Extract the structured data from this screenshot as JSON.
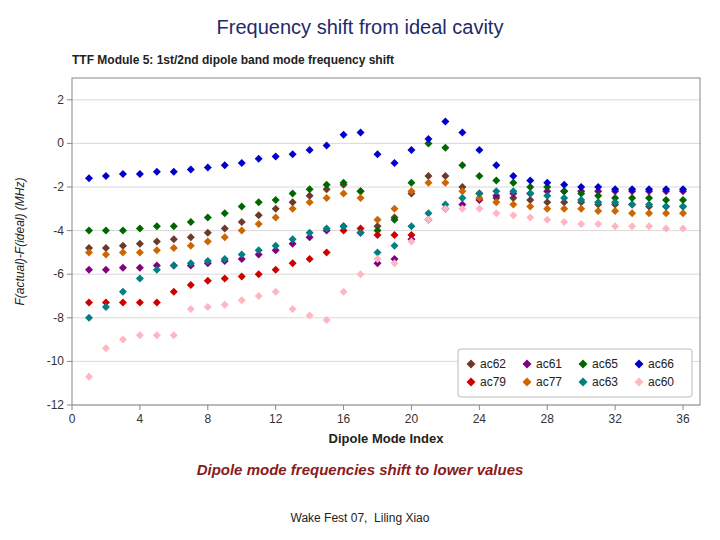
{
  "chart_data": {
    "type": "scatter",
    "title": "Frequency shift from ideal cavity",
    "subtitle": "TTF Module 5: 1st/2nd dipole band mode frequency shift",
    "x_label": "Dipole Mode Index",
    "y_label": "F(actual)-F(ideal) (MHz)",
    "annotations": [
      "Dipole mode frequencies shift to lower values",
      "Wake Fest 07,  Liling Xiao"
    ],
    "xlim": [
      0,
      37
    ],
    "ylim": [
      -12,
      3
    ],
    "xticks": [
      0,
      4,
      8,
      12,
      16,
      20,
      24,
      28,
      32,
      36
    ],
    "yticks": [
      -12,
      -10,
      -8,
      -6,
      -4,
      -2,
      0,
      2
    ],
    "grid": true,
    "legend": "lower right",
    "marker": "diamond",
    "series": [
      {
        "name": "ac62",
        "color": "#6B3A2A",
        "x": [
          1,
          2,
          3,
          4,
          5,
          6,
          7,
          8,
          9,
          10,
          11,
          12,
          13,
          14,
          15,
          16,
          17,
          18,
          19,
          20,
          21,
          22,
          23,
          24,
          25,
          26,
          27,
          28,
          29,
          30,
          31,
          32,
          33,
          34,
          35,
          36
        ],
        "values": [
          -4.8,
          -4.8,
          -4.7,
          -4.6,
          -4.5,
          -4.4,
          -4.3,
          -4.1,
          -3.9,
          -3.6,
          -3.3,
          -3.0,
          -2.7,
          -2.4,
          -2.1,
          -1.9,
          -2.2,
          -3.8,
          -3.4,
          -2.3,
          -1.5,
          -1.5,
          -2.0,
          -2.3,
          -2.5,
          -2.5,
          -2.6,
          -2.7,
          -2.7,
          -2.7,
          -2.8,
          -2.8,
          -2.8,
          -2.9,
          -2.9,
          -2.9
        ]
      },
      {
        "name": "ac61",
        "color": "#800080",
        "x": [
          1,
          2,
          3,
          4,
          5,
          6,
          7,
          8,
          9,
          10,
          11,
          12,
          13,
          14,
          15,
          16,
          17,
          18,
          19,
          20,
          21,
          22,
          23,
          24,
          25,
          26,
          27,
          28,
          29,
          30,
          31,
          32,
          33,
          34,
          35,
          36
        ],
        "values": [
          -5.8,
          -5.8,
          -5.7,
          -5.7,
          -5.6,
          -5.6,
          -5.6,
          -5.5,
          -5.4,
          -5.3,
          -5.1,
          -4.9,
          -4.6,
          -4.3,
          -4.0,
          -3.8,
          -4.1,
          -5.5,
          -5.3,
          -4.4,
          -3.5,
          -3.0,
          -2.8,
          -2.6,
          -2.4,
          -2.3,
          -2.3,
          -2.2,
          -2.2,
          -2.2,
          -2.2,
          -2.2,
          -2.2,
          -2.2,
          -2.2,
          -2.2
        ]
      },
      {
        "name": "ac65",
        "color": "#006600",
        "x": [
          1,
          2,
          3,
          4,
          5,
          6,
          7,
          8,
          9,
          10,
          11,
          12,
          13,
          14,
          15,
          16,
          17,
          18,
          19,
          20,
          21,
          22,
          23,
          24,
          25,
          26,
          27,
          28,
          29,
          30,
          31,
          32,
          33,
          34,
          35,
          36
        ],
        "values": [
          -4.0,
          -4.0,
          -4.0,
          -3.9,
          -3.8,
          -3.8,
          -3.6,
          -3.4,
          -3.2,
          -2.9,
          -2.7,
          -2.6,
          -2.3,
          -2.1,
          -1.9,
          -1.8,
          -2.2,
          -4.0,
          -3.5,
          -1.8,
          0.0,
          -0.2,
          -1.0,
          -1.5,
          -1.7,
          -1.8,
          -2.0,
          -2.0,
          -2.2,
          -2.3,
          -2.4,
          -2.5,
          -2.5,
          -2.5,
          -2.6,
          -2.6
        ]
      },
      {
        "name": "ac66",
        "color": "#0000CC",
        "x": [
          1,
          2,
          3,
          4,
          5,
          6,
          7,
          8,
          9,
          10,
          11,
          12,
          13,
          14,
          15,
          16,
          17,
          18,
          19,
          20,
          21,
          22,
          23,
          24,
          25,
          26,
          27,
          28,
          29,
          30,
          31,
          32,
          33,
          34,
          35,
          36
        ],
        "values": [
          -1.6,
          -1.5,
          -1.4,
          -1.4,
          -1.3,
          -1.3,
          -1.2,
          -1.1,
          -1.0,
          -0.9,
          -0.7,
          -0.6,
          -0.5,
          -0.3,
          -0.1,
          0.4,
          0.5,
          -0.5,
          -0.9,
          -0.3,
          0.2,
          1.0,
          0.5,
          -0.3,
          -1.0,
          -1.5,
          -1.7,
          -1.8,
          -1.9,
          -2.0,
          -2.0,
          -2.1,
          -2.1,
          -2.1,
          -2.1,
          -2.1
        ]
      },
      {
        "name": "ac79",
        "color": "#CC0000",
        "x": [
          1,
          2,
          3,
          4,
          5,
          6,
          7,
          8,
          9,
          10,
          11,
          12,
          13,
          14,
          15,
          16,
          17,
          18,
          19,
          20
        ],
        "values": [
          -7.3,
          -7.3,
          -7.3,
          -7.3,
          -7.3,
          -6.8,
          -6.5,
          -6.3,
          -6.2,
          -6.1,
          -6.0,
          -5.8,
          -5.5,
          -5.3,
          -5.0,
          -4.0,
          -3.9,
          -4.2,
          -4.2,
          -4.2
        ]
      },
      {
        "name": "ac77",
        "color": "#CC6600",
        "x": [
          1,
          2,
          3,
          4,
          5,
          6,
          7,
          8,
          9,
          10,
          11,
          12,
          13,
          14,
          15,
          16,
          17,
          18,
          19,
          20,
          21,
          22,
          23,
          24,
          25,
          26,
          27,
          28,
          29,
          30,
          31,
          32,
          33,
          34,
          35,
          36
        ],
        "values": [
          -5.0,
          -5.1,
          -5.0,
          -5.0,
          -4.9,
          -4.8,
          -4.7,
          -4.5,
          -4.3,
          -4.0,
          -3.7,
          -3.4,
          -3.0,
          -2.7,
          -2.5,
          -2.3,
          -2.5,
          -3.5,
          -3.0,
          -2.2,
          -1.8,
          -1.8,
          -2.2,
          -2.5,
          -2.7,
          -2.8,
          -2.9,
          -3.0,
          -3.0,
          -3.0,
          -3.1,
          -3.1,
          -3.2,
          -3.2,
          -3.2,
          -3.2
        ]
      },
      {
        "name": "ac63",
        "color": "#008080",
        "x": [
          1,
          2,
          3,
          4,
          5,
          6,
          7,
          8,
          9,
          10,
          11,
          12,
          13,
          14,
          15,
          16,
          17,
          18,
          19,
          20,
          21,
          22,
          23,
          24,
          25,
          26,
          27,
          28,
          29,
          30,
          31,
          32,
          33,
          34,
          35,
          36
        ],
        "values": [
          -8.0,
          -7.5,
          -6.8,
          -6.2,
          -5.8,
          -5.6,
          -5.5,
          -5.4,
          -5.3,
          -5.1,
          -4.9,
          -4.7,
          -4.4,
          -4.1,
          -3.9,
          -3.8,
          -4.1,
          -5.0,
          -4.7,
          -3.8,
          -3.2,
          -2.8,
          -2.5,
          -2.3,
          -2.2,
          -2.2,
          -2.3,
          -2.4,
          -2.5,
          -2.6,
          -2.7,
          -2.7,
          -2.8,
          -2.8,
          -2.9,
          -2.9
        ]
      },
      {
        "name": "ac60",
        "color": "#FFB6C1",
        "x": [
          1,
          2,
          3,
          4,
          5,
          6,
          7,
          8,
          9,
          10,
          11,
          12,
          13,
          14,
          15,
          16,
          17,
          18,
          19,
          20,
          21,
          22,
          23,
          24,
          25,
          26,
          27,
          28,
          29,
          30,
          31,
          32,
          33,
          34,
          35,
          36
        ],
        "values": [
          -10.7,
          -9.4,
          -9.0,
          -8.8,
          -8.8,
          -8.8,
          -7.6,
          -7.5,
          -7.4,
          -7.2,
          -7.0,
          -6.8,
          -7.6,
          -7.9,
          -8.1,
          -6.8,
          -6.0,
          -5.3,
          -5.5,
          -4.5,
          -3.5,
          -3.0,
          -3.0,
          -3.0,
          -3.2,
          -3.3,
          -3.4,
          -3.5,
          -3.6,
          -3.7,
          -3.7,
          -3.8,
          -3.8,
          -3.8,
          -3.9,
          -3.9
        ]
      }
    ]
  }
}
